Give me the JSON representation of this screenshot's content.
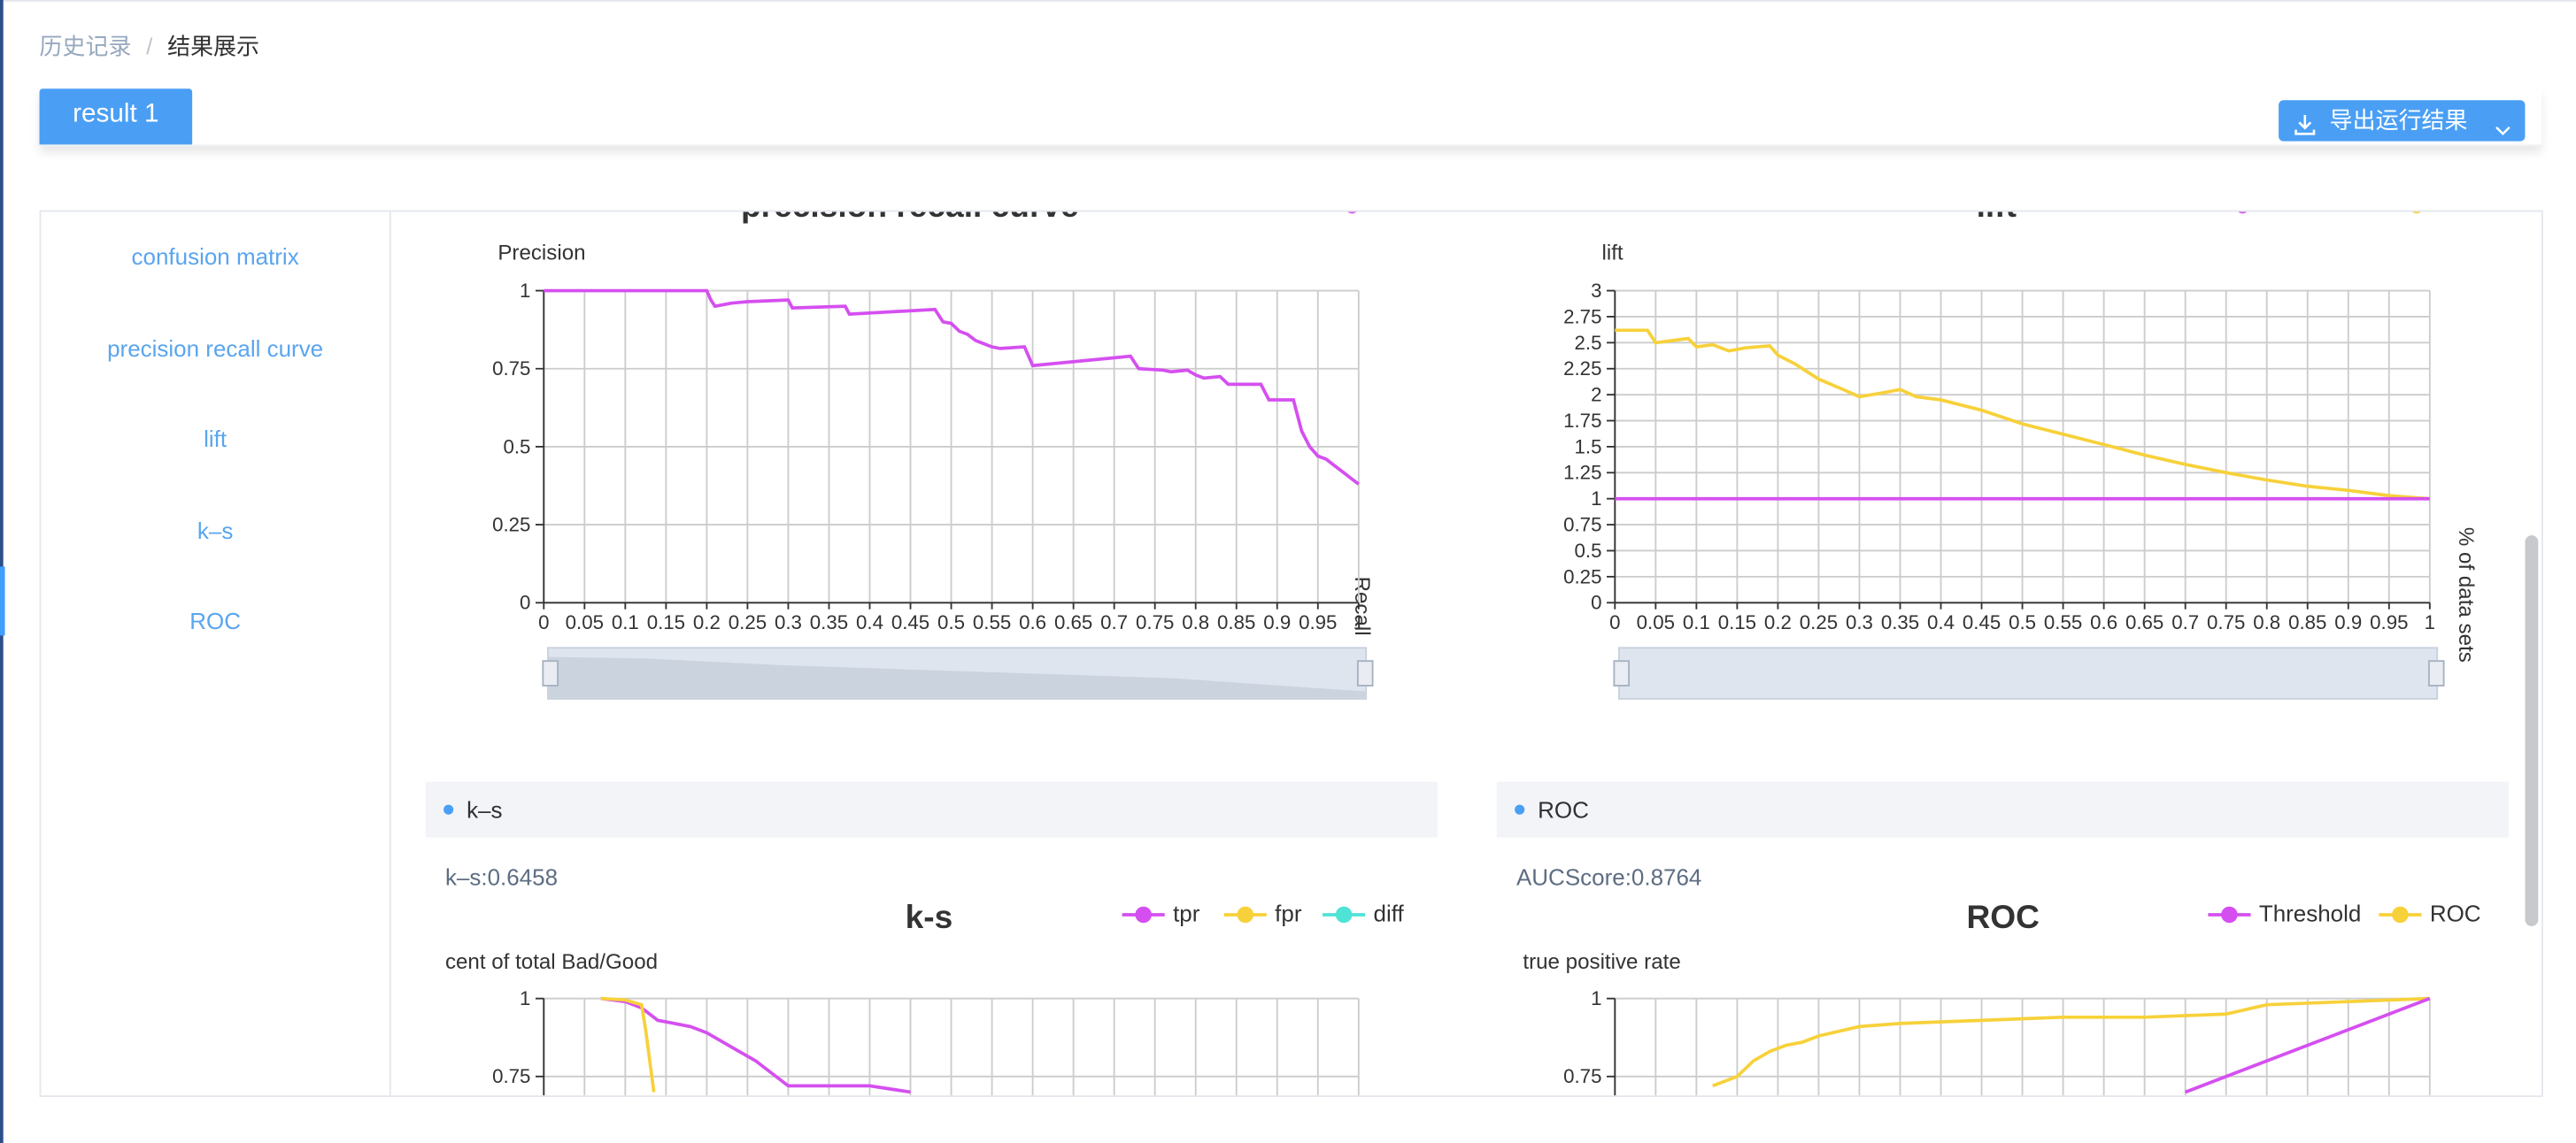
{
  "breadcrumb": {
    "items": [
      "历史记录",
      "结果展示"
    ],
    "separator": "/"
  },
  "tabs": [
    {
      "label": "result 1",
      "active": true
    }
  ],
  "export_button": {
    "label": "导出运行结果",
    "icon": "download-icon",
    "caret": "chevron-down-icon"
  },
  "sidebar": {
    "items": [
      "confusion matrix",
      "precision recall curve",
      "lift",
      "k–s",
      "ROC"
    ]
  },
  "colors": {
    "primary": "#4a9ff5",
    "magenta": "#d54ff0",
    "yellow": "#f7d13a",
    "cyan": "#4fe3d6",
    "axis": "#333333",
    "grid": "#cccccc"
  },
  "charts": {
    "pr": {
      "title": "precision recall curve",
      "ylabel": "Precision",
      "xlabel": "Recall"
    },
    "lift": {
      "title": "lift",
      "ylabel": "lift",
      "xlabel": "% of data sets"
    },
    "ks": {
      "section": "k–s",
      "score": "k–s:0.6458",
      "title": "k-s",
      "ylabel": "cent of total Bad/Good",
      "legend": [
        "tpr",
        "fpr",
        "diff"
      ]
    },
    "roc": {
      "section": "ROC",
      "score": "AUCScore:0.8764",
      "title": "ROC",
      "ylabel": "true positive rate",
      "legend": [
        "Threshold",
        "ROC"
      ]
    }
  },
  "chart_data": [
    {
      "type": "line",
      "title": "precision recall curve",
      "xlabel": "Recall",
      "ylabel": "Precision",
      "xlim": [
        0,
        1
      ],
      "ylim": [
        0,
        1
      ],
      "xticks": [
        "0",
        "0.05",
        "0.1",
        "0.15",
        "0.2",
        "0.25",
        "0.3",
        "0.35",
        "0.4",
        "0.45",
        "0.5",
        "0.55",
        "0.6",
        "0.65",
        "0.7",
        "0.75",
        "0.8",
        "0.85",
        "0.9",
        "0.95",
        "1"
      ],
      "yticks": [
        "0",
        "0.25",
        "0.5",
        "0.75",
        "1"
      ],
      "series": [
        {
          "color": "#d54ff0",
          "x": [
            0,
            0.2,
            0.205,
            0.21,
            0.23,
            0.25,
            0.3,
            0.305,
            0.37,
            0.375,
            0.48,
            0.49,
            0.5,
            0.51,
            0.52,
            0.53,
            0.54,
            0.55,
            0.56,
            0.59,
            0.6,
            0.72,
            0.73,
            0.76,
            0.77,
            0.79,
            0.8,
            0.81,
            0.83,
            0.84,
            0.88,
            0.89,
            0.92,
            0.925,
            0.93,
            0.94,
            0.95,
            0.96,
            0.97,
            0.98,
            0.99,
            1
          ],
          "y": [
            1,
            1,
            0.97,
            0.95,
            0.96,
            0.965,
            0.97,
            0.945,
            0.95,
            0.925,
            0.94,
            0.9,
            0.895,
            0.87,
            0.86,
            0.84,
            0.83,
            0.82,
            0.815,
            0.82,
            0.76,
            0.79,
            0.75,
            0.745,
            0.74,
            0.745,
            0.73,
            0.72,
            0.725,
            0.7,
            0.7,
            0.65,
            0.65,
            0.6,
            0.55,
            0.5,
            0.47,
            0.46,
            0.44,
            0.42,
            0.4,
            0.38
          ]
        }
      ]
    },
    {
      "type": "line",
      "title": "lift",
      "xlabel": "% of data sets",
      "ylabel": "lift",
      "xlim": [
        0,
        1
      ],
      "ylim": [
        0,
        3
      ],
      "xticks": [
        "0",
        "0.05",
        "0.1",
        "0.15",
        "0.2",
        "0.25",
        "0.3",
        "0.35",
        "0.4",
        "0.45",
        "0.5",
        "0.55",
        "0.6",
        "0.65",
        "0.7",
        "0.75",
        "0.8",
        "0.85",
        "0.9",
        "0.95",
        "1"
      ],
      "yticks": [
        "0",
        "0.25",
        "0.5",
        "0.75",
        "1",
        "1.25",
        "1.5",
        "1.75",
        "2",
        "2.25",
        "2.5",
        "2.75",
        "3"
      ],
      "series": [
        {
          "color": "#f7d13a",
          "x": [
            0,
            0.04,
            0.05,
            0.07,
            0.09,
            0.1,
            0.12,
            0.14,
            0.16,
            0.19,
            0.2,
            0.22,
            0.25,
            0.28,
            0.3,
            0.33,
            0.35,
            0.37,
            0.4,
            0.45,
            0.5,
            0.55,
            0.6,
            0.65,
            0.7,
            0.75,
            0.8,
            0.85,
            0.9,
            0.95,
            1
          ],
          "y": [
            2.62,
            2.62,
            2.5,
            2.52,
            2.54,
            2.46,
            2.48,
            2.42,
            2.45,
            2.47,
            2.38,
            2.3,
            2.15,
            2.05,
            1.98,
            2.02,
            2.05,
            1.98,
            1.95,
            1.85,
            1.72,
            1.62,
            1.52,
            1.42,
            1.33,
            1.25,
            1.18,
            1.12,
            1.08,
            1.03,
            1.0
          ]
        },
        {
          "color": "#d54ff0",
          "x": [
            0,
            1
          ],
          "y": [
            1,
            1
          ]
        }
      ]
    },
    {
      "type": "line",
      "title": "k-s",
      "ylabel": "cent of total Bad/Good",
      "ylim": [
        0,
        1
      ],
      "yticks": [
        "1",
        "0.75"
      ],
      "series": [
        {
          "name": "tpr",
          "color": "#d54ff0",
          "x": [
            0.07,
            0.1,
            0.12,
            0.14,
            0.16,
            0.18,
            0.2,
            0.22,
            0.24,
            0.26,
            0.28,
            0.3,
            0.35,
            0.4,
            0.45
          ],
          "y": [
            1,
            0.99,
            0.97,
            0.93,
            0.92,
            0.91,
            0.89,
            0.86,
            0.83,
            0.8,
            0.76,
            0.72,
            0.72,
            0.72,
            0.7
          ]
        },
        {
          "name": "fpr",
          "color": "#f7d13a",
          "x": [
            0.07,
            0.1,
            0.12,
            0.125,
            0.13,
            0.135
          ],
          "y": [
            1,
            0.995,
            0.98,
            0.9,
            0.8,
            0.7
          ]
        },
        {
          "name": "diff",
          "color": "#4fe3d6",
          "x": [],
          "y": []
        }
      ]
    },
    {
      "type": "line",
      "title": "ROC",
      "ylabel": "true positive rate",
      "ylim": [
        0,
        1
      ],
      "yticks": [
        "1",
        "0.75"
      ],
      "series": [
        {
          "name": "ROC",
          "color": "#f7d13a",
          "x": [
            0.12,
            0.15,
            0.17,
            0.19,
            0.21,
            0.23,
            0.25,
            0.3,
            0.35,
            0.45,
            0.55,
            0.65,
            0.75,
            0.8,
            0.9,
            1
          ],
          "y": [
            0.72,
            0.75,
            0.8,
            0.83,
            0.85,
            0.86,
            0.88,
            0.91,
            0.92,
            0.93,
            0.94,
            0.94,
            0.95,
            0.98,
            0.99,
            1
          ]
        },
        {
          "name": "Threshold",
          "color": "#d54ff0",
          "x": [
            0.7,
            1
          ],
          "y": [
            0.7,
            1
          ]
        }
      ]
    }
  ]
}
